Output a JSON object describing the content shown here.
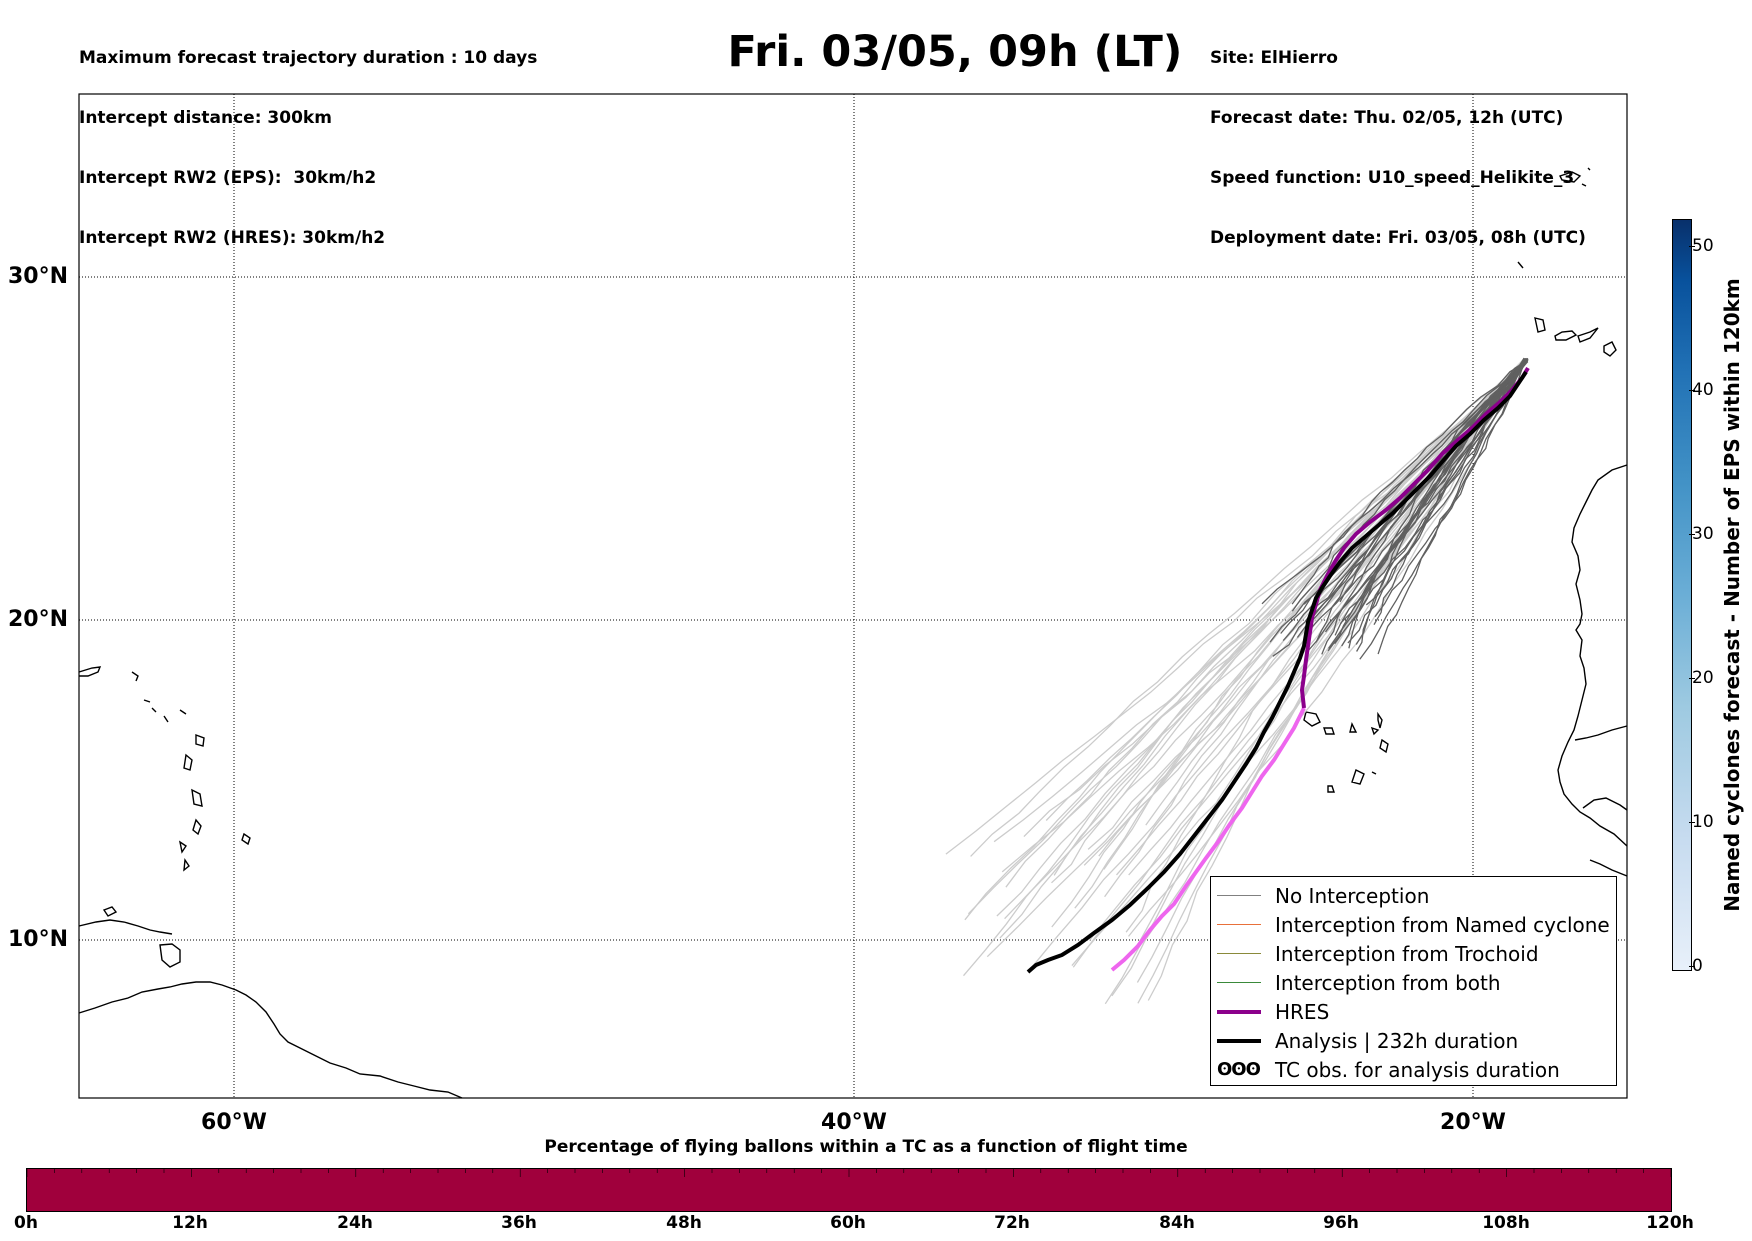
{
  "header_left": [
    "Maximum forecast trajectory duration : 10 days",
    "Intercept distance: 300km",
    "Intercept RW2 (EPS):  30km/h2",
    "Intercept RW2 (HRES): 30km/h2"
  ],
  "header_right": [
    "Site: ElHierro",
    "Forecast date: Thu. 02/05, 12h (UTC)",
    "Speed function: U10_speed_Helikite_3",
    "Deployment date: Fri. 03/05, 08h (UTC)"
  ],
  "main_title": "Fri. 03/05, 09h (LT)",
  "map": {
    "lon_range": [
      -65,
      15
    ],
    "lat_range": [
      5,
      35
    ],
    "lat_labels": [
      "30°N",
      "20°N",
      "10°N"
    ],
    "lon_labels": [
      "60°W",
      "40°W",
      "20°W"
    ],
    "grid_lats": [
      30,
      20,
      10
    ],
    "grid_lons": [
      -60,
      -40,
      -20
    ]
  },
  "legend": {
    "entries": [
      {
        "label": "No Interception",
        "color": "#808080",
        "style": "thin"
      },
      {
        "label": "Interception from Named cyclone",
        "color": "#e8703a",
        "style": "thin"
      },
      {
        "label": "Interception from Trochoid",
        "color": "#8a8a3a",
        "style": "thin"
      },
      {
        "label": "Interception from both",
        "color": "#3a8a3a",
        "style": "thin"
      },
      {
        "label": "HRES",
        "color": "#8b008b",
        "style": "thick"
      },
      {
        "label": "Analysis | 232h duration",
        "color": "#000000",
        "style": "thick"
      },
      {
        "label": "TC obs. for analysis duration",
        "color": "#000000",
        "style": "glyph",
        "glyph": "ʘʘʘ"
      }
    ]
  },
  "colorbar": {
    "label": "Named cyclones forecast - Number of EPS within 120km",
    "min": 0,
    "max": 52,
    "ticks": [
      "0",
      "10",
      "20",
      "30",
      "40",
      "50"
    ]
  },
  "bottom": {
    "title": "Percentage of flying ballons within a TC as a function of flight time",
    "ticks": [
      "0h",
      "12h",
      "24h",
      "36h",
      "48h",
      "60h",
      "72h",
      "84h",
      "96h",
      "108h",
      "120h"
    ],
    "fill_color": "#a0003c"
  },
  "colors": {
    "ensemble_light": "#cccccc",
    "ensemble_dark": "#606060",
    "hres_early": "#8b008b",
    "hres_late": "#ee66ee",
    "analysis": "#000000"
  }
}
